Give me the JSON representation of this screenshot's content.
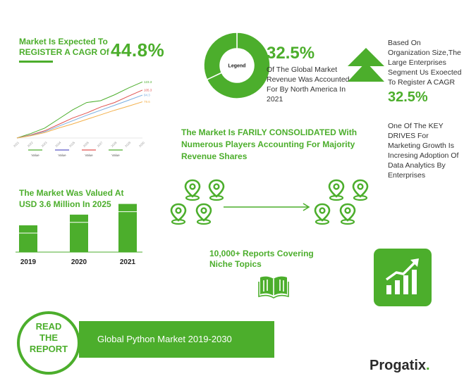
{
  "cagr": {
    "label_line1": "Market Is Expected To",
    "label_line2": "REGISTER  A CAGR Of",
    "value": "44.8%"
  },
  "north_america": {
    "donut_center": "Legend",
    "value": "32.5%",
    "description": "Of The Global Market Revenue Was Accounted For By North America In 2021"
  },
  "organization": {
    "description": "Based On Organization Size,The Large Enterprises Segment Us Exoected To Register A CAGR",
    "value": "32.5%"
  },
  "drivers": {
    "description": "One Of The KEY DRIVES For Marketing Growth Is Incresing Adoption Of Data Analytics By Enterprises"
  },
  "consolidated": {
    "text": "The Market Is FARILY CONSOLIDATED With Numerous Players Accounting For Majority Revenue Shares"
  },
  "valued": {
    "text": "The Market Was Valued At USD  3.6 Million In 2025"
  },
  "reports": {
    "text": "10,000+ Reports Covering Niche Topics"
  },
  "banner": {
    "read_line1": "READ",
    "read_line2": "THE",
    "read_line3": "REPORT",
    "title": "Global Python Market 2019-2030"
  },
  "logo": {
    "text": "Progatix",
    "dot": "."
  },
  "colors": {
    "brand_green": "#4cae2c",
    "light_green": "#8fd16b",
    "red": "#e0524f",
    "blue": "#79aee0",
    "orange": "#f3b04b"
  },
  "chart_data": [
    {
      "type": "line",
      "title": "",
      "x": [
        "2021",
        "2022",
        "2023",
        "2024",
        "2025",
        "2026",
        "2027",
        "2028",
        "2029",
        "2030"
      ],
      "series": [
        {
          "name": "",
          "color": "#4cae2c",
          "values": [
            0,
            10,
            22,
            42,
            62,
            78,
            82,
            95,
            110,
            123.3
          ],
          "end_label": "123.3"
        },
        {
          "name": "",
          "color": "#e0524f",
          "values": [
            0,
            7,
            16,
            30,
            44,
            55,
            68,
            78,
            92,
            105.3
          ],
          "end_label": "105.3"
        },
        {
          "name": "",
          "color": "#79aee0",
          "values": [
            0,
            6,
            14,
            26,
            38,
            50,
            61,
            72,
            83,
            94.3
          ],
          "end_label": "94.3"
        },
        {
          "name": "",
          "color": "#f3b04b",
          "values": [
            0,
            5,
            12,
            22,
            31,
            41,
            51,
            61,
            70,
            79.6
          ],
          "end_label": "79.6"
        }
      ],
      "legend": [
        "Value",
        "Value",
        "Value",
        "Value"
      ],
      "legend_colors": [
        "#4cae2c",
        "#5b58c7",
        "#e0524f",
        "#4cae2c"
      ],
      "ylim": [
        0,
        130
      ]
    },
    {
      "type": "bar",
      "title": "",
      "categories": [
        "2019",
        "2020",
        "2021"
      ],
      "values": [
        40,
        56,
        72
      ],
      "ylim": [
        0,
        80
      ]
    },
    {
      "type": "pie",
      "title": "",
      "segments": [
        {
          "label": "",
          "value": 68
        },
        {
          "label": "",
          "value": 32
        }
      ]
    }
  ]
}
